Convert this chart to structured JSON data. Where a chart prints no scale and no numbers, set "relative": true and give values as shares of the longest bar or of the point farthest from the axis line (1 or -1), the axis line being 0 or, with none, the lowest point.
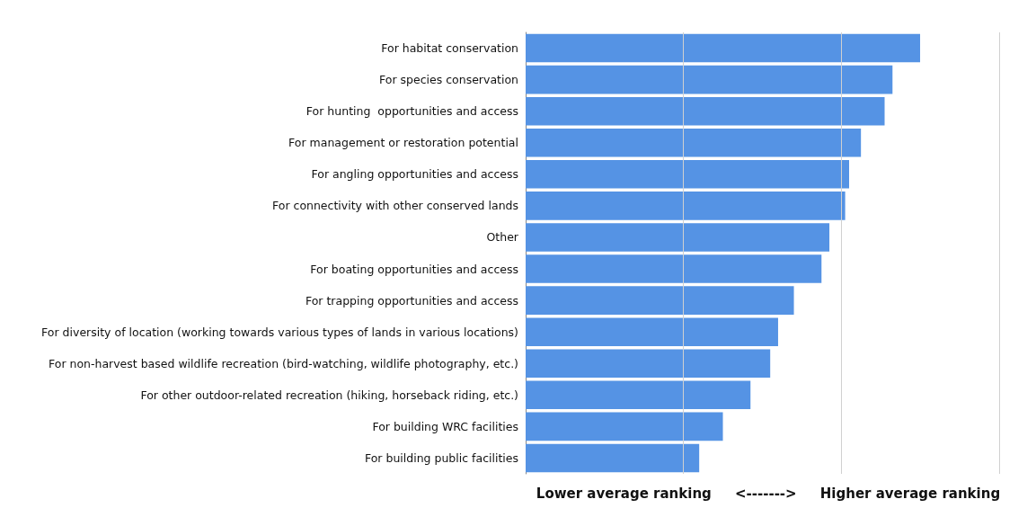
{
  "chart_data": {
    "type": "bar",
    "orientation": "horizontal",
    "relative": true,
    "ref_lines": [
      {
        "axis": "x",
        "value": 0.4,
        "color": "#d0d0d0"
      },
      {
        "axis": "x",
        "value": 0.8,
        "color": "#d0d0d0"
      },
      {
        "axis": "x",
        "value": 1.2,
        "color": "#d0d0d0"
      }
    ],
    "xlabel": "Lower average ranking     <------->     Higher average ranking",
    "categories": [
      "For habitat conservation",
      "For species conservation",
      "For hunting  opportunities and access",
      "For management or restoration potential",
      "For angling opportunities and access",
      "For connectivity with other conserved lands",
      "Other",
      "For boating opportunities and access",
      "For trapping opportunities and access",
      "For diversity of location (working towards various types of lands in various locations)",
      "For non-harvest based wildlife recreation (bird-watching, wildlife photography, etc.)",
      "For other outdoor-related recreation (hiking, horseback riding, etc.)",
      "For building WRC facilities",
      "For building public facilities"
    ],
    "series": [
      {
        "color": "#5593e4",
        "values": [
          1,
          0.93,
          0.91,
          0.85,
          0.82,
          0.81,
          0.77,
          0.75,
          0.68,
          0.64,
          0.62,
          0.57,
          0.5,
          0.44
        ]
      }
    ]
  }
}
